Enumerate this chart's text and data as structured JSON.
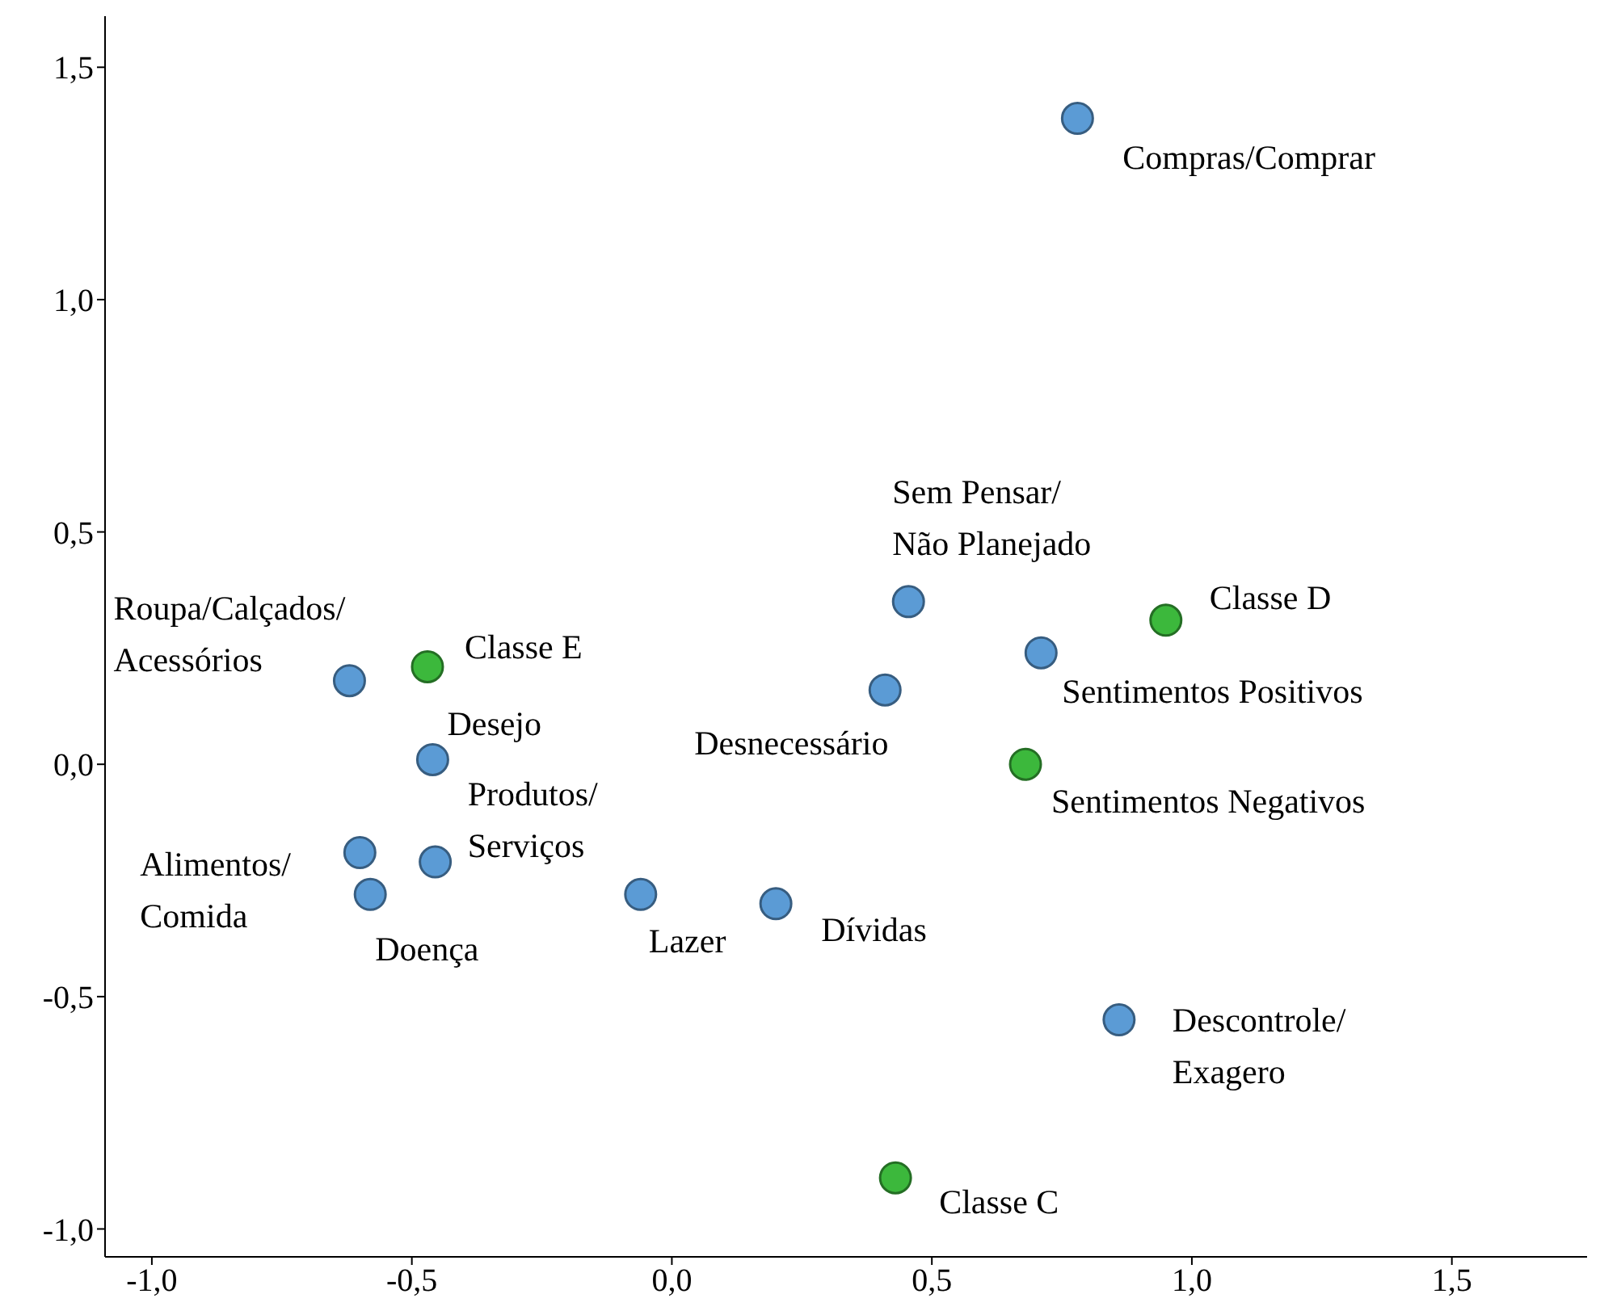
{
  "chart_data": {
    "type": "scatter",
    "marker": "circle",
    "grid": false,
    "legend": false,
    "xlim": [
      -1.09,
      1.76
    ],
    "ylim": [
      -1.06,
      1.61
    ],
    "xticks": [
      {
        "value": -1,
        "label": "-1,0"
      },
      {
        "value": -0.5,
        "label": "-0,5"
      },
      {
        "value": 0,
        "label": "0,0"
      },
      {
        "value": 0.5,
        "label": "0,5"
      },
      {
        "value": 1,
        "label": "1,0"
      },
      {
        "value": 1.5,
        "label": "1,5"
      }
    ],
    "yticks": [
      {
        "value": -1,
        "label": "-1,0"
      },
      {
        "value": -0.5,
        "label": "-0,5"
      },
      {
        "value": 0,
        "label": "0,0"
      },
      {
        "value": 0.5,
        "label": "0,5"
      },
      {
        "value": 1,
        "label": "1,0"
      },
      {
        "value": 1.5,
        "label": "1,5"
      }
    ],
    "series": [
      {
        "color": "#5b9bd5",
        "x": [
          0.78,
          0.455,
          0.71,
          0.41,
          -0.62,
          -0.46,
          -0.455,
          -0.6,
          -0.58,
          -0.06,
          0.2,
          0.86
        ],
        "values": [
          1.39,
          0.35,
          0.24,
          0.16,
          0.18,
          0.01,
          -0.21,
          -0.19,
          -0.28,
          -0.28,
          -0.3,
          -0.55
        ]
      },
      {
        "color": "#3cb83c",
        "x": [
          0.95,
          0.68,
          -0.47,
          0.43
        ],
        "values": [
          0.31,
          0.0,
          0.21,
          -0.89
        ]
      }
    ],
    "annotations": [
      {
        "text": "Compras/Comprar",
        "x": 0.78,
        "y": 1.39
      },
      {
        "text": "Sem Pensar/\nNão Planejado",
        "x": 0.455,
        "y": 0.35
      },
      {
        "text": "Sentimentos Positivos",
        "x": 0.71,
        "y": 0.24
      },
      {
        "text": "Desnecessário",
        "x": 0.41,
        "y": 0.16
      },
      {
        "text": "Roupa/Calçados/\nAcessórios",
        "x": -0.62,
        "y": 0.18
      },
      {
        "text": "Desejo",
        "x": -0.46,
        "y": 0.01
      },
      {
        "text": "Produtos/\nServiços",
        "x": -0.455,
        "y": -0.21
      },
      {
        "text": "Alimentos/\nComida",
        "x": -0.6,
        "y": -0.19
      },
      {
        "text": "Doença",
        "x": -0.58,
        "y": -0.28
      },
      {
        "text": "Lazer",
        "x": -0.06,
        "y": -0.28
      },
      {
        "text": "Dívidas",
        "x": 0.2,
        "y": -0.3
      },
      {
        "text": "Descontrole/\nExagero",
        "x": 0.86,
        "y": -0.55
      },
      {
        "text": "Classe D",
        "x": 0.95,
        "y": 0.31
      },
      {
        "text": "Sentimentos Negativos",
        "x": 0.68,
        "y": 0.0
      },
      {
        "text": "Classe E",
        "x": -0.47,
        "y": 0.21
      },
      {
        "text": "Classe C",
        "x": 0.43,
        "y": -0.89
      }
    ]
  }
}
